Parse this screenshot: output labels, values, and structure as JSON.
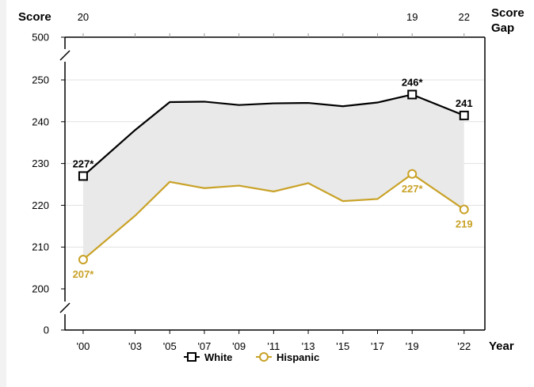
{
  "chart_data": {
    "type": "line",
    "ylabel": "Score",
    "xlabel": "Year",
    "gap_label": [
      "Score",
      "Gap"
    ],
    "x": [
      "'00",
      "'03",
      "'05",
      "'07",
      "'09",
      "'11",
      "'13",
      "'15",
      "'17",
      "'19",
      "'22"
    ],
    "x_years": [
      2000,
      2003,
      2005,
      2007,
      2009,
      2011,
      2013,
      2015,
      2017,
      2019,
      2022
    ],
    "y_ticks": [
      0,
      200,
      210,
      220,
      230,
      240,
      250,
      500
    ],
    "y_axis_break": true,
    "ylim": [
      200,
      250
    ],
    "gap_values": [
      {
        "year": 2000,
        "label": "20"
      },
      {
        "year": 2019,
        "label": "19"
      },
      {
        "year": 2022,
        "label": "22"
      }
    ],
    "gap_shaded": true,
    "grid": "horizontal",
    "legend_position": "bottom-center",
    "series": [
      {
        "name": "White",
        "color": "#000000",
        "marker": "square",
        "values": [
          227,
          238,
          244.7,
          244.8,
          244,
          244.4,
          244.5,
          243.7,
          244.6,
          246.5,
          241.5
        ],
        "labels": [
          {
            "index": 0,
            "text": "227*"
          },
          {
            "index": 9,
            "text": "246*"
          },
          {
            "index": 10,
            "text": "241"
          }
        ]
      },
      {
        "name": "Hispanic",
        "color": "#C9A227",
        "marker": "circle",
        "values": [
          207,
          217.5,
          225.6,
          224.1,
          224.7,
          223.3,
          225.3,
          221,
          221.5,
          227.5,
          219
        ],
        "labels": [
          {
            "index": 0,
            "text": "207*"
          },
          {
            "index": 9,
            "text": "227*"
          },
          {
            "index": 10,
            "text": "219"
          }
        ]
      }
    ]
  }
}
